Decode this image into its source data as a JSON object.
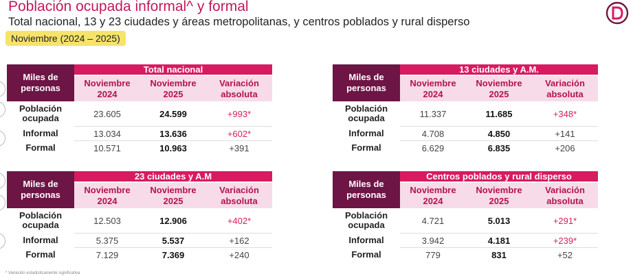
{
  "header": {
    "title": "Población ocupada informal^ y formal",
    "subtitle": "Total nacional, 13 y 23 ciudades y áreas metropolitanas, y centros poblados y rural disperso",
    "period": "Noviembre (2024 – 2025)"
  },
  "colors": {
    "accent": "#d81b60",
    "dark": "#6d1544",
    "highlight": "#f6e36a"
  },
  "tables": [
    {
      "unit_label": "Miles de personas",
      "group_title": "Total nacional",
      "columns": [
        "Noviembre 2024",
        "Noviembre 2025",
        "Variación absoluta"
      ],
      "rows": [
        {
          "label": "Población ocupada",
          "v2024": "23.605",
          "v2025": "24.599",
          "var": "+993*",
          "sig": true
        },
        {
          "label": "Informal",
          "v2024": "13.034",
          "v2025": "13.636",
          "var": "+602*",
          "sig": true
        },
        {
          "label": "Formal",
          "v2024": "10.571",
          "v2025": "10.963",
          "var": "+391",
          "sig": false
        }
      ]
    },
    {
      "unit_label": "Miles de personas",
      "group_title": "13 ciudades y A.M.",
      "columns": [
        "Noviembre 2024",
        "Noviembre 2025",
        "Variación absoluta"
      ],
      "rows": [
        {
          "label": "Población ocupada",
          "v2024": "11.337",
          "v2025": "11.685",
          "var": "+348*",
          "sig": true
        },
        {
          "label": "Informal",
          "v2024": "4.708",
          "v2025": "4.850",
          "var": "+141",
          "sig": false
        },
        {
          "label": "Formal",
          "v2024": "6.629",
          "v2025": "6.835",
          "var": "+206",
          "sig": false
        }
      ]
    },
    {
      "unit_label": "Miles de personas",
      "group_title": "23 ciudades y A.M",
      "columns": [
        "Noviembre 2024",
        "Noviembre 2025",
        "Variación absoluta"
      ],
      "rows": [
        {
          "label": "Población ocupada",
          "v2024": "12.503",
          "v2025": "12.906",
          "var": "+402*",
          "sig": true
        },
        {
          "label": "Informal",
          "v2024": "5.375",
          "v2025": "5.537",
          "var": "+162",
          "sig": false
        },
        {
          "label": "Formal",
          "v2024": "7.129",
          "v2025": "7.369",
          "var": "+240",
          "sig": false
        }
      ]
    },
    {
      "unit_label": "Miles de personas",
      "group_title": "Centros poblados y rural disperso",
      "columns": [
        "Noviembre 2024",
        "Noviembre 2025",
        "Variación absoluta"
      ],
      "rows": [
        {
          "label": "Población ocupada",
          "v2024": "4.721",
          "v2025": "5.013",
          "var": "+291*",
          "sig": true
        },
        {
          "label": "Informal",
          "v2024": "3.942",
          "v2025": "4.181",
          "var": "+239*",
          "sig": true
        },
        {
          "label": "Formal",
          "v2024": "779",
          "v2025": "831",
          "var": "+52",
          "sig": false
        }
      ]
    }
  ],
  "footnote": "* Variación estadísticamente significativa"
}
